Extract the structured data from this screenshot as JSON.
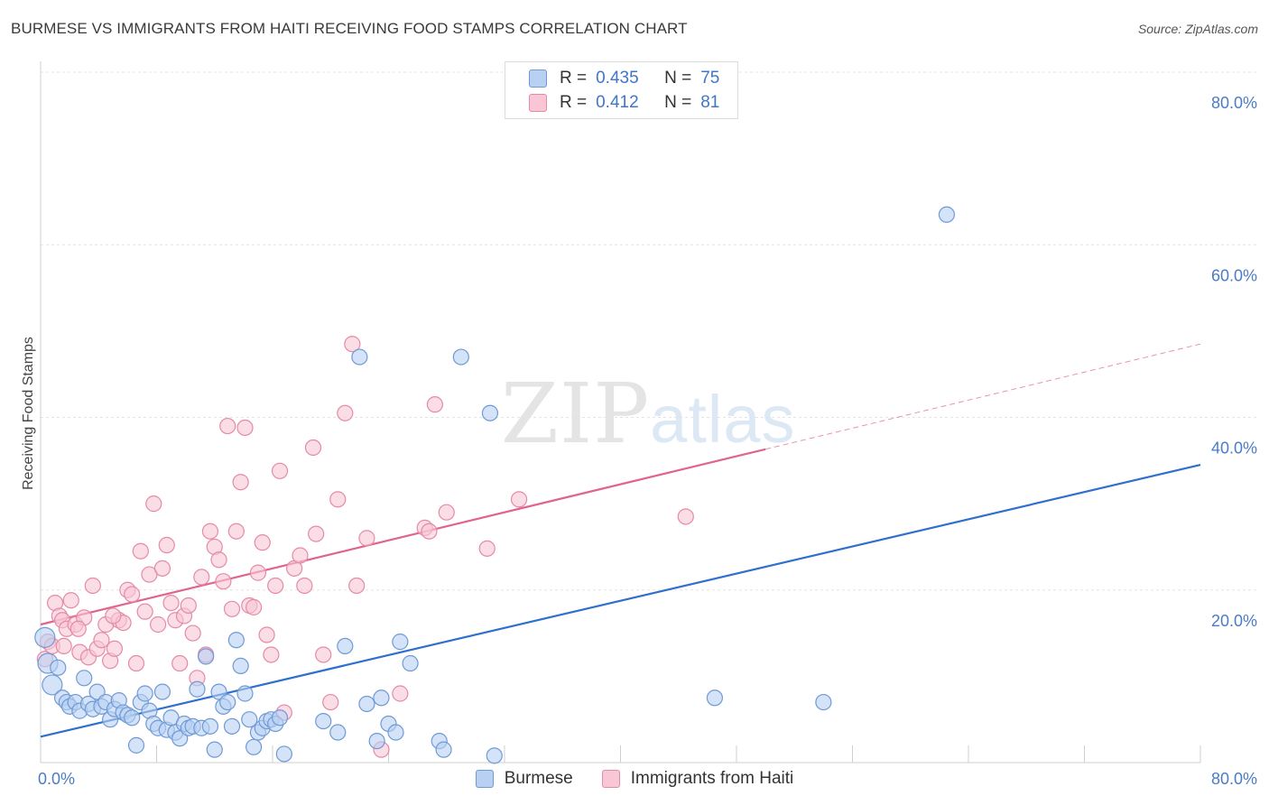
{
  "title": "BURMESE VS IMMIGRANTS FROM HAITI RECEIVING FOOD STAMPS CORRELATION CHART",
  "source": "Source: ZipAtlas.com",
  "watermark": {
    "zip": "ZIP",
    "atlas": "atlas"
  },
  "legend": {
    "r_label": "R =",
    "n_label": "N =",
    "rows": [
      {
        "r": "0.435",
        "n": "75"
      },
      {
        "r": "0.412",
        "n": "81"
      }
    ]
  },
  "colors": {
    "burmese_fill": "#b8d0f2",
    "burmese_stroke": "#6f9ad6",
    "burmese_line": "#2f6fce",
    "haiti_fill": "#f8c6d4",
    "haiti_stroke": "#e58aa8",
    "haiti_line": "#e0648e"
  },
  "chart_data": {
    "type": "scatter",
    "title": "BURMESE VS IMMIGRANTS FROM HAITI RECEIVING FOOD STAMPS CORRELATION CHART",
    "xlabel": "",
    "ylabel": "Receiving Food Stamps",
    "xlim": [
      0,
      80
    ],
    "ylim": [
      0,
      80
    ],
    "x_tick_labels": [
      "0.0%",
      "80.0%"
    ],
    "y_ticks": [
      20,
      40,
      60,
      80
    ],
    "y_tick_labels": [
      "20.0%",
      "40.0%",
      "60.0%",
      "80.0%"
    ],
    "grid": true,
    "legend_position": "top-center",
    "series": [
      {
        "name": "Burmese",
        "trend": {
          "x": [
            0,
            80
          ],
          "y": [
            3.0,
            34.5
          ],
          "dashed_from": null
        },
        "points": [
          [
            0.3,
            14.5
          ],
          [
            0.5,
            11.5
          ],
          [
            0.8,
            9.0
          ],
          [
            1.2,
            11.0
          ],
          [
            1.5,
            7.5
          ],
          [
            1.8,
            7.0
          ],
          [
            2.0,
            6.5
          ],
          [
            2.4,
            7.0
          ],
          [
            2.7,
            6.0
          ],
          [
            3.0,
            9.8
          ],
          [
            3.3,
            6.8
          ],
          [
            3.6,
            6.2
          ],
          [
            3.9,
            8.2
          ],
          [
            4.2,
            6.5
          ],
          [
            4.5,
            7.0
          ],
          [
            4.8,
            5.0
          ],
          [
            5.1,
            6.2
          ],
          [
            5.4,
            7.2
          ],
          [
            5.7,
            5.8
          ],
          [
            6.0,
            5.5
          ],
          [
            6.3,
            5.2
          ],
          [
            6.6,
            2.0
          ],
          [
            6.9,
            7.0
          ],
          [
            7.2,
            8.0
          ],
          [
            7.5,
            6.0
          ],
          [
            7.8,
            4.5
          ],
          [
            8.1,
            4.0
          ],
          [
            8.4,
            8.2
          ],
          [
            8.7,
            3.8
          ],
          [
            9.0,
            5.2
          ],
          [
            9.3,
            3.5
          ],
          [
            9.6,
            2.8
          ],
          [
            9.9,
            4.5
          ],
          [
            10.2,
            4.0
          ],
          [
            10.5,
            4.2
          ],
          [
            10.8,
            8.5
          ],
          [
            11.1,
            4.0
          ],
          [
            11.4,
            12.3
          ],
          [
            11.7,
            4.2
          ],
          [
            12.0,
            1.5
          ],
          [
            12.3,
            8.2
          ],
          [
            12.6,
            6.5
          ],
          [
            12.9,
            7.0
          ],
          [
            13.2,
            4.2
          ],
          [
            13.5,
            14.2
          ],
          [
            13.8,
            11.2
          ],
          [
            14.1,
            8.0
          ],
          [
            14.4,
            5.0
          ],
          [
            14.7,
            1.8
          ],
          [
            15.0,
            3.5
          ],
          [
            15.3,
            4.0
          ],
          [
            15.6,
            4.8
          ],
          [
            15.9,
            5.0
          ],
          [
            16.2,
            4.5
          ],
          [
            16.5,
            5.2
          ],
          [
            16.8,
            1.0
          ],
          [
            19.5,
            4.8
          ],
          [
            20.5,
            3.5
          ],
          [
            21.0,
            13.5
          ],
          [
            22.0,
            47.0
          ],
          [
            22.5,
            6.8
          ],
          [
            23.5,
            7.5
          ],
          [
            23.2,
            2.5
          ],
          [
            24.0,
            4.5
          ],
          [
            24.5,
            3.5
          ],
          [
            24.8,
            14.0
          ],
          [
            25.5,
            11.5
          ],
          [
            27.5,
            2.5
          ],
          [
            27.8,
            1.5
          ],
          [
            29.0,
            47.0
          ],
          [
            31.0,
            40.5
          ],
          [
            31.3,
            0.8
          ],
          [
            46.5,
            7.5
          ],
          [
            54.0,
            7.0
          ],
          [
            62.5,
            63.5
          ]
        ]
      },
      {
        "name": "Immigrants from Haiti",
        "trend": {
          "x": [
            0,
            80
          ],
          "y": [
            16.0,
            48.5
          ],
          "dashed_from": 50
        },
        "points": [
          [
            0.3,
            12.0
          ],
          [
            0.5,
            14.0
          ],
          [
            0.8,
            13.5
          ],
          [
            1.0,
            18.5
          ],
          [
            1.3,
            17.0
          ],
          [
            1.5,
            16.5
          ],
          [
            1.8,
            15.5
          ],
          [
            2.1,
            18.8
          ],
          [
            2.4,
            16.0
          ],
          [
            2.7,
            12.8
          ],
          [
            3.0,
            16.8
          ],
          [
            3.3,
            12.2
          ],
          [
            3.6,
            20.5
          ],
          [
            3.9,
            13.2
          ],
          [
            4.2,
            14.2
          ],
          [
            4.5,
            16.0
          ],
          [
            4.8,
            11.8
          ],
          [
            5.1,
            13.2
          ],
          [
            5.4,
            16.5
          ],
          [
            5.7,
            16.2
          ],
          [
            6.0,
            20.0
          ],
          [
            6.3,
            19.5
          ],
          [
            6.6,
            11.5
          ],
          [
            6.9,
            24.5
          ],
          [
            7.2,
            17.5
          ],
          [
            7.5,
            21.8
          ],
          [
            7.8,
            30.0
          ],
          [
            8.1,
            16.0
          ],
          [
            8.4,
            22.5
          ],
          [
            8.7,
            25.2
          ],
          [
            9.0,
            18.5
          ],
          [
            9.3,
            16.5
          ],
          [
            9.6,
            11.5
          ],
          [
            9.9,
            17.0
          ],
          [
            10.2,
            18.2
          ],
          [
            10.5,
            15.0
          ],
          [
            10.8,
            9.8
          ],
          [
            11.1,
            21.5
          ],
          [
            11.4,
            12.5
          ],
          [
            11.7,
            26.8
          ],
          [
            12.0,
            25.0
          ],
          [
            12.3,
            23.5
          ],
          [
            12.6,
            21.0
          ],
          [
            12.9,
            39.0
          ],
          [
            13.2,
            17.8
          ],
          [
            13.5,
            26.8
          ],
          [
            13.8,
            32.5
          ],
          [
            14.1,
            38.8
          ],
          [
            14.4,
            18.2
          ],
          [
            14.7,
            18.0
          ],
          [
            15.0,
            22.0
          ],
          [
            15.3,
            25.5
          ],
          [
            15.6,
            14.8
          ],
          [
            15.9,
            12.5
          ],
          [
            16.2,
            20.5
          ],
          [
            16.5,
            33.8
          ],
          [
            16.8,
            5.8
          ],
          [
            17.5,
            22.5
          ],
          [
            17.9,
            24.0
          ],
          [
            18.2,
            20.5
          ],
          [
            18.8,
            36.5
          ],
          [
            19.0,
            26.5
          ],
          [
            19.5,
            12.5
          ],
          [
            20.0,
            7.0
          ],
          [
            20.5,
            30.5
          ],
          [
            21.0,
            40.5
          ],
          [
            21.5,
            48.5
          ],
          [
            21.8,
            20.5
          ],
          [
            22.5,
            26.0
          ],
          [
            23.5,
            1.5
          ],
          [
            24.8,
            8.0
          ],
          [
            26.5,
            27.2
          ],
          [
            26.8,
            26.8
          ],
          [
            27.2,
            41.5
          ],
          [
            28.0,
            29.0
          ],
          [
            30.8,
            24.8
          ],
          [
            33.0,
            30.5
          ],
          [
            44.5,
            28.5
          ],
          [
            5.0,
            17.0
          ],
          [
            2.6,
            15.5
          ],
          [
            1.6,
            13.5
          ]
        ]
      }
    ]
  }
}
